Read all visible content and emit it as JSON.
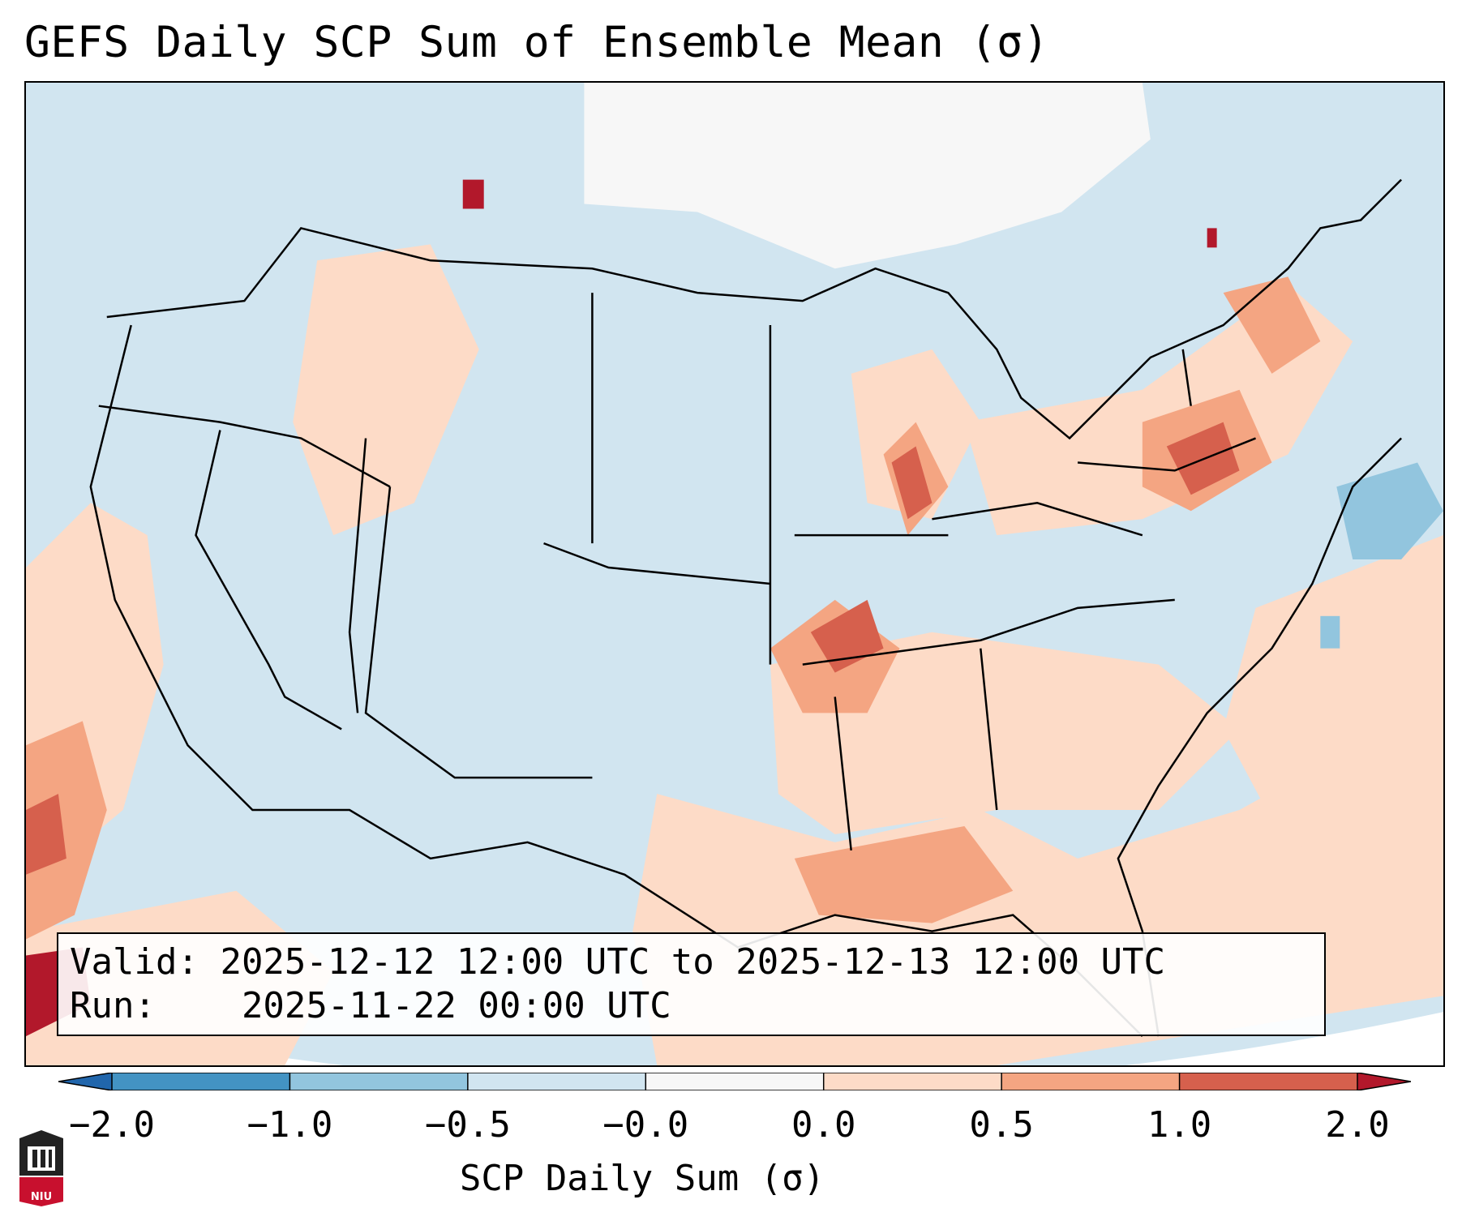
{
  "title": "GEFS Daily SCP Sum of Ensemble Mean (σ)",
  "info": {
    "valid_label": "Valid:",
    "valid_value": "2025-12-12 12:00 UTC to 2025-12-13 12:00 UTC",
    "run_label": "Run:",
    "run_value": "2025-11-22 00:00 UTC"
  },
  "colorbar": {
    "label": "SCP Daily Sum (σ)",
    "ticks": [
      "−2.0",
      "−1.0",
      "−0.5",
      "−0.0",
      "0.0",
      "0.5",
      "1.0",
      "2.0"
    ],
    "bins": [
      {
        "range": "< -2.0",
        "color": "#2166ac"
      },
      {
        "range": "-2.0 to -1.0",
        "color": "#4393c3"
      },
      {
        "range": "-1.0 to -0.5",
        "color": "#92c5de"
      },
      {
        "range": "-0.5 to -0.0",
        "color": "#d1e5f0"
      },
      {
        "range": "-0.0 to 0.0",
        "color": "#f7f7f7"
      },
      {
        "range": "0.0 to 0.5",
        "color": "#fddbc7"
      },
      {
        "range": "0.5 to 1.0",
        "color": "#f4a582"
      },
      {
        "range": "1.0 to 2.0",
        "color": "#d6604d"
      },
      {
        "range": "> 2.0",
        "color": "#b2182b"
      }
    ]
  },
  "map": {
    "region": "Contiguous United States",
    "anomaly_areas": [
      {
        "region": "Arkansas / southern Missouri / Mississippi Valley",
        "level": "0.5 to 2.0"
      },
      {
        "region": "Pennsylvania / New York",
        "level": "0.5 to 2.0"
      },
      {
        "region": "Northern New England",
        "level": "0.5 to 2.0"
      },
      {
        "region": "Upper Mississippi valley / eastern Iowa",
        "level": "1.0 to 2.0"
      },
      {
        "region": "Gulf of Mexico",
        "level": "0.0 to 1.0"
      },
      {
        "region": "Southeast US / western Atlantic",
        "level": "0.0 to 0.5"
      },
      {
        "region": "Eastern Pacific off Baja California",
        "level": "1.0 to 2.0"
      },
      {
        "region": "Atlantic off New England",
        "level": "-1.0 to -0.5"
      }
    ]
  },
  "logo": {
    "text": "NIU"
  }
}
